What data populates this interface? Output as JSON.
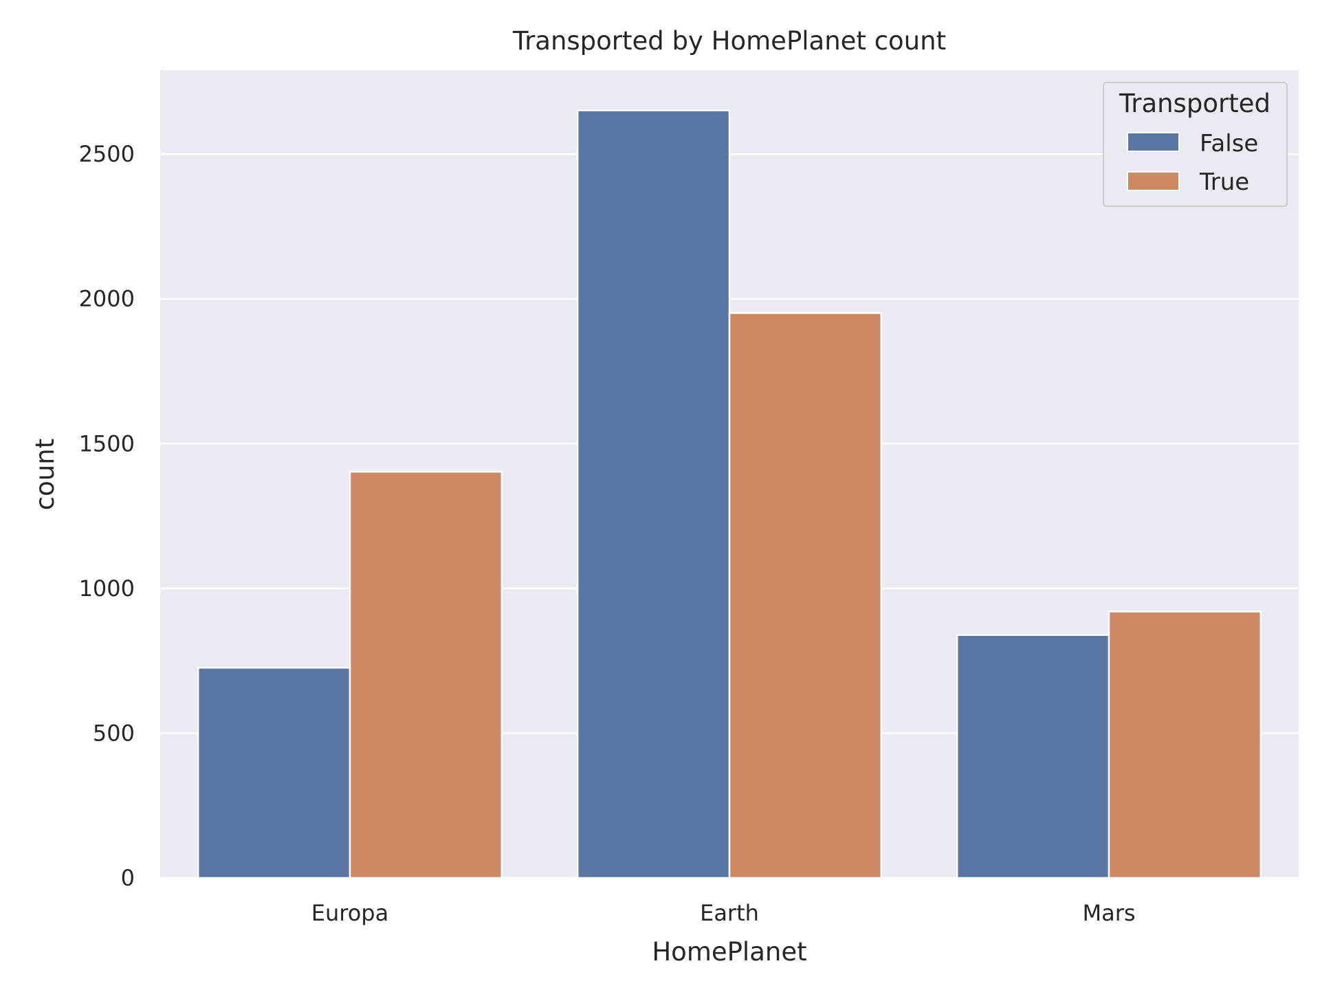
{
  "chart_data": {
    "type": "bar",
    "title": "Transported by HomePlanet count",
    "xlabel": "HomePlanet",
    "ylabel": "count",
    "categories": [
      "Europa",
      "Earth",
      "Mars"
    ],
    "series": [
      {
        "name": "False",
        "values": [
          726,
          2651,
          839
        ],
        "color": "#5975a4"
      },
      {
        "name": "True",
        "values": [
          1403,
          1951,
          920
        ],
        "color": "#cc8963"
      }
    ],
    "ylim": [
      0,
      2790
    ],
    "yticks": [
      0,
      500,
      1000,
      1500,
      2000,
      2500
    ],
    "ytick_labels": [
      "0",
      "500",
      "1000",
      "1500",
      "2000",
      "2500"
    ],
    "grid": true,
    "legend": {
      "title": "Transported",
      "placement": "top-right",
      "entries": [
        "False",
        "True"
      ]
    },
    "background": "#eaeaf2",
    "gridline_color": "#ffffff"
  }
}
